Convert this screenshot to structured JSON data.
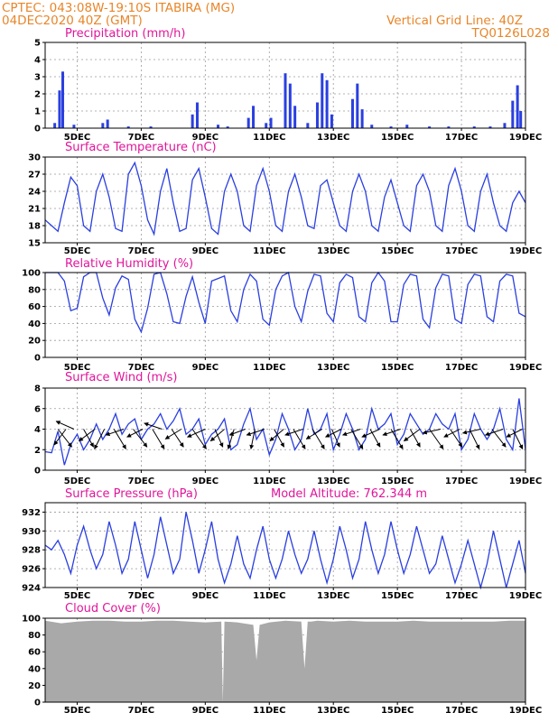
{
  "header": {
    "left_line1": "CPTEC:    043:08W-19:10S    ITABIRA (MG)",
    "left_line2": "04DEC2020 40Z (GMT)",
    "right_line1": "Vertical Grid Line: 40Z",
    "right_line2": "TQ0126L028"
  },
  "colors": {
    "header": "#e8862a",
    "title": "#e0169a",
    "series": "#2a3fe0",
    "cloud": "#a9a9a9",
    "arrow": "#000000"
  },
  "x_ticks": [
    "5DEC",
    "7DEC",
    "9DEC",
    "11DEC",
    "13DEC",
    "15DEC",
    "17DEC",
    "19DEC"
  ],
  "panels": {
    "precip": {
      "title": "Precipitation (mm/h)",
      "y_ticks": [
        "0",
        "1",
        "2",
        "3",
        "4",
        "5"
      ]
    },
    "temp": {
      "title": "Surface Temperature (nC)",
      "y_ticks": [
        "15",
        "18",
        "21",
        "24",
        "27",
        "30"
      ]
    },
    "rh": {
      "title": "Relative Humidity (%)",
      "y_ticks": [
        "0",
        "20",
        "40",
        "60",
        "80",
        "100"
      ]
    },
    "wind": {
      "title": "Surface Wind (m/s)",
      "y_ticks": [
        "0",
        "2",
        "4",
        "6",
        "8"
      ]
    },
    "pres": {
      "title": "Surface Pressure (hPa)",
      "subtitle": "Model Altitude: 762.344 m",
      "y_ticks": [
        "924",
        "926",
        "928",
        "930",
        "932"
      ]
    },
    "cloud": {
      "title": "Cloud Cover (%)",
      "y_ticks": [
        "0",
        "20",
        "40",
        "60",
        "80",
        "100"
      ]
    }
  },
  "chart_data": [
    {
      "type": "bar",
      "ylabel": "Precipitation (mm/h)",
      "ylim": [
        0,
        5
      ],
      "x": [
        "4.3DEC",
        "4.45DEC",
        "4.55DEC",
        "4.9DEC",
        "5.8DEC",
        "5.95DEC",
        "6.6DEC",
        "7.3DEC",
        "8.6DEC",
        "8.75DEC",
        "9.4DEC",
        "9.7DEC",
        "10.35DEC",
        "10.5DEC",
        "10.9DEC",
        "11.05DEC",
        "11.5DEC",
        "11.65DEC",
        "11.8DEC",
        "12.2DEC",
        "12.5DEC",
        "12.65DEC",
        "12.8DEC",
        "12.95DEC",
        "13.6DEC",
        "13.75DEC",
        "13.9DEC",
        "14.2DEC",
        "14.8DEC",
        "15.3DEC",
        "16.0DEC",
        "16.6DEC",
        "17.4DEC",
        "17.9DEC",
        "18.35DEC",
        "18.6DEC",
        "18.75DEC",
        "18.85DEC"
      ],
      "values": [
        0.3,
        2.2,
        3.3,
        0.2,
        0.3,
        0.5,
        0.1,
        0.1,
        0.8,
        1.5,
        0.2,
        0.1,
        0.6,
        1.3,
        0.3,
        0.6,
        3.2,
        2.6,
        1.3,
        0.3,
        1.5,
        3.2,
        2.8,
        0.8,
        1.7,
        2.6,
        1.1,
        0.2,
        0.1,
        0.2,
        0.1,
        0.1,
        0.1,
        0.1,
        0.3,
        1.6,
        2.5,
        1.0
      ],
      "grid": true
    },
    {
      "type": "line",
      "ylabel": "Surface Temperature (nC)",
      "ylim": [
        15,
        30
      ],
      "x": [
        "4.0DEC",
        "4.2DEC",
        "4.4DEC",
        "4.6DEC",
        "4.8DEC",
        "5.0DEC",
        "5.2DEC",
        "5.4DEC",
        "5.6DEC",
        "5.8DEC",
        "6.0DEC",
        "6.2DEC",
        "6.4DEC",
        "6.6DEC",
        "6.8DEC",
        "7.0DEC",
        "7.2DEC",
        "7.4DEC",
        "7.6DEC",
        "7.8DEC",
        "8.0DEC",
        "8.2DEC",
        "8.4DEC",
        "8.6DEC",
        "8.8DEC",
        "9.0DEC",
        "9.2DEC",
        "9.4DEC",
        "9.6DEC",
        "9.8DEC",
        "10.0DEC",
        "10.2DEC",
        "10.4DEC",
        "10.6DEC",
        "10.8DEC",
        "11.0DEC",
        "11.2DEC",
        "11.4DEC",
        "11.6DEC",
        "11.8DEC",
        "12.0DEC",
        "12.2DEC",
        "12.4DEC",
        "12.6DEC",
        "12.8DEC",
        "13.0DEC",
        "13.2DEC",
        "13.4DEC",
        "13.6DEC",
        "13.8DEC",
        "14.0DEC",
        "14.2DEC",
        "14.4DEC",
        "14.6DEC",
        "14.8DEC",
        "15.0DEC",
        "15.2DEC",
        "15.4DEC",
        "15.6DEC",
        "15.8DEC",
        "16.0DEC",
        "16.2DEC",
        "16.4DEC",
        "16.6DEC",
        "16.8DEC",
        "17.0DEC",
        "17.2DEC",
        "17.4DEC",
        "17.6DEC",
        "17.8DEC",
        "18.0DEC",
        "18.2DEC",
        "18.4DEC",
        "18.6DEC",
        "18.8DEC",
        "19.0DEC"
      ],
      "values": [
        19.0,
        18.0,
        17.0,
        22.0,
        26.5,
        25.0,
        18.0,
        17.0,
        24.0,
        27.0,
        23.0,
        17.5,
        17.0,
        27.0,
        29.0,
        25.0,
        19.0,
        16.5,
        24.0,
        28.0,
        22.0,
        17.0,
        17.5,
        26.0,
        28.0,
        23.0,
        17.5,
        16.5,
        24.0,
        27.0,
        24.0,
        18.0,
        17.0,
        25.0,
        28.0,
        24.0,
        18.0,
        17.0,
        24.0,
        27.0,
        23.0,
        18.0,
        17.5,
        25.0,
        26.0,
        22.0,
        18.0,
        17.0,
        24.0,
        27.0,
        24.0,
        18.0,
        17.0,
        23.0,
        26.0,
        22.0,
        18.0,
        17.0,
        25.0,
        27.0,
        24.0,
        18.0,
        17.0,
        25.0,
        28.0,
        24.0,
        18.0,
        17.0,
        24.0,
        27.0,
        22.0,
        18.0,
        17.0,
        22.0,
        24.0,
        22.0
      ],
      "grid": true
    },
    {
      "type": "line",
      "ylabel": "Relative Humidity (%)",
      "ylim": [
        0,
        100
      ],
      "x": [
        "4.0DEC",
        "4.2DEC",
        "4.4DEC",
        "4.6DEC",
        "4.8DEC",
        "5.0DEC",
        "5.2DEC",
        "5.4DEC",
        "5.6DEC",
        "5.8DEC",
        "6.0DEC",
        "6.2DEC",
        "6.4DEC",
        "6.6DEC",
        "6.8DEC",
        "7.0DEC",
        "7.2DEC",
        "7.4DEC",
        "7.6DEC",
        "7.8DEC",
        "8.0DEC",
        "8.2DEC",
        "8.4DEC",
        "8.6DEC",
        "8.8DEC",
        "9.0DEC",
        "9.2DEC",
        "9.4DEC",
        "9.6DEC",
        "9.8DEC",
        "10.0DEC",
        "10.2DEC",
        "10.4DEC",
        "10.6DEC",
        "10.8DEC",
        "11.0DEC",
        "11.2DEC",
        "11.4DEC",
        "11.6DEC",
        "11.8DEC",
        "12.0DEC",
        "12.2DEC",
        "12.4DEC",
        "12.6DEC",
        "12.8DEC",
        "13.0DEC",
        "13.2DEC",
        "13.4DEC",
        "13.6DEC",
        "13.8DEC",
        "14.0DEC",
        "14.2DEC",
        "14.4DEC",
        "14.6DEC",
        "14.8DEC",
        "15.0DEC",
        "15.2DEC",
        "15.4DEC",
        "15.6DEC",
        "15.8DEC",
        "16.0DEC",
        "16.2DEC",
        "16.4DEC",
        "16.6DEC",
        "16.8DEC",
        "17.0DEC",
        "17.2DEC",
        "17.4DEC",
        "17.6DEC",
        "17.8DEC",
        "18.0DEC",
        "18.2DEC",
        "18.4DEC",
        "18.6DEC",
        "18.8DEC",
        "19.0DEC"
      ],
      "values": [
        100,
        100,
        100,
        90,
        55,
        58,
        95,
        100,
        100,
        70,
        50,
        82,
        96,
        92,
        45,
        30,
        58,
        98,
        100,
        75,
        42,
        40,
        72,
        95,
        65,
        40,
        90,
        93,
        96,
        55,
        42,
        80,
        98,
        90,
        45,
        38,
        80,
        96,
        100,
        60,
        42,
        78,
        98,
        96,
        52,
        42,
        88,
        98,
        94,
        48,
        42,
        88,
        100,
        90,
        42,
        42,
        86,
        98,
        96,
        45,
        35,
        82,
        98,
        96,
        45,
        40,
        86,
        98,
        96,
        48,
        42,
        90,
        98,
        96,
        52,
        48
      ],
      "grid": true
    },
    {
      "type": "line",
      "ylabel": "Surface Wind (m/s)",
      "ylim": [
        0,
        8
      ],
      "x": [
        "4.0DEC",
        "4.2DEC",
        "4.4DEC",
        "4.6DEC",
        "4.8DEC",
        "5.0DEC",
        "5.2DEC",
        "5.4DEC",
        "5.6DEC",
        "5.8DEC",
        "6.0DEC",
        "6.2DEC",
        "6.4DEC",
        "6.6DEC",
        "6.8DEC",
        "7.0DEC",
        "7.2DEC",
        "7.4DEC",
        "7.6DEC",
        "7.8DEC",
        "8.0DEC",
        "8.2DEC",
        "8.4DEC",
        "8.6DEC",
        "8.8DEC",
        "9.0DEC",
        "9.2DEC",
        "9.4DEC",
        "9.6DEC",
        "9.8DEC",
        "10.0DEC",
        "10.2DEC",
        "10.4DEC",
        "10.6DEC",
        "10.8DEC",
        "11.0DEC",
        "11.2DEC",
        "11.4DEC",
        "11.6DEC",
        "11.8DEC",
        "12.0DEC",
        "12.2DEC",
        "12.4DEC",
        "12.6DEC",
        "12.8DEC",
        "13.0DEC",
        "13.2DEC",
        "13.4DEC",
        "13.6DEC",
        "13.8DEC",
        "14.0DEC",
        "14.2DEC",
        "14.4DEC",
        "14.6DEC",
        "14.8DEC",
        "15.0DEC",
        "15.2DEC",
        "15.4DEC",
        "15.6DEC",
        "15.8DEC",
        "16.0DEC",
        "16.2DEC",
        "16.4DEC",
        "16.6DEC",
        "16.8DEC",
        "17.0DEC",
        "17.2DEC",
        "17.4DEC",
        "17.6DEC",
        "17.8DEC",
        "18.0DEC",
        "18.2DEC",
        "18.4DEC",
        "18.6DEC",
        "18.8DEC",
        "19.0DEC"
      ],
      "values": [
        1.8,
        1.7,
        3.8,
        0.5,
        2.5,
        3.5,
        2.0,
        3.0,
        4.5,
        3.0,
        4.0,
        5.5,
        3.5,
        4.5,
        5.0,
        3.0,
        4.0,
        4.5,
        5.5,
        4.0,
        4.8,
        6.0,
        3.5,
        4.0,
        5.0,
        2.5,
        3.5,
        4.0,
        5.0,
        2.0,
        2.5,
        4.5,
        6.0,
        3.0,
        4.0,
        1.5,
        3.0,
        5.5,
        4.0,
        2.0,
        3.0,
        6.0,
        3.5,
        4.0,
        5.5,
        2.0,
        3.5,
        5.5,
        4.0,
        2.0,
        3.0,
        6.0,
        4.0,
        4.5,
        5.5,
        2.5,
        3.5,
        5.5,
        4.5,
        3.5,
        4.0,
        5.5,
        4.5,
        4.0,
        5.5,
        2.0,
        3.0,
        5.5,
        4.0,
        3.0,
        4.0,
        6.0,
        3.0,
        2.0,
        7.0,
        2.0
      ],
      "grid": true
    },
    {
      "type": "line",
      "ylabel": "Surface Pressure (hPa)",
      "ylim": [
        924,
        933
      ],
      "x": [
        "4.0DEC",
        "4.2DEC",
        "4.4DEC",
        "4.6DEC",
        "4.8DEC",
        "5.0DEC",
        "5.2DEC",
        "5.4DEC",
        "5.6DEC",
        "5.8DEC",
        "6.0DEC",
        "6.2DEC",
        "6.4DEC",
        "6.6DEC",
        "6.8DEC",
        "7.0DEC",
        "7.2DEC",
        "7.4DEC",
        "7.6DEC",
        "7.8DEC",
        "8.0DEC",
        "8.2DEC",
        "8.4DEC",
        "8.6DEC",
        "8.8DEC",
        "9.0DEC",
        "9.2DEC",
        "9.4DEC",
        "9.6DEC",
        "9.8DEC",
        "10.0DEC",
        "10.2DEC",
        "10.4DEC",
        "10.6DEC",
        "10.8DEC",
        "11.0DEC",
        "11.2DEC",
        "11.4DEC",
        "11.6DEC",
        "11.8DEC",
        "12.0DEC",
        "12.2DEC",
        "12.4DEC",
        "12.6DEC",
        "12.8DEC",
        "13.0DEC",
        "13.2DEC",
        "13.4DEC",
        "13.6DEC",
        "13.8DEC",
        "14.0DEC",
        "14.2DEC",
        "14.4DEC",
        "14.6DEC",
        "14.8DEC",
        "15.0DEC",
        "15.2DEC",
        "15.4DEC",
        "15.6DEC",
        "15.8DEC",
        "16.0DEC",
        "16.2DEC",
        "16.4DEC",
        "16.6DEC",
        "16.8DEC",
        "17.0DEC",
        "17.2DEC",
        "17.4DEC",
        "17.6DEC",
        "17.8DEC",
        "18.0DEC",
        "18.2DEC",
        "18.4DEC",
        "18.6DEC",
        "18.8DEC",
        "19.0DEC"
      ],
      "values": [
        928.5,
        928.0,
        929.0,
        927.5,
        925.5,
        928.5,
        930.5,
        928.0,
        926.0,
        927.5,
        931.0,
        928.5,
        925.5,
        927.0,
        931.0,
        928.0,
        925.0,
        927.5,
        931.5,
        928.5,
        925.5,
        927.0,
        932.0,
        929.0,
        925.5,
        928.0,
        931.0,
        927.0,
        924.5,
        926.5,
        929.5,
        926.5,
        925.0,
        928.0,
        930.5,
        927.0,
        925.0,
        927.0,
        930.0,
        927.5,
        925.5,
        927.0,
        930.0,
        927.0,
        924.5,
        927.0,
        930.5,
        928.0,
        925.0,
        927.0,
        931.0,
        928.0,
        925.5,
        927.5,
        931.0,
        928.0,
        925.5,
        927.5,
        930.5,
        928.0,
        925.5,
        926.5,
        929.5,
        927.0,
        924.5,
        926.5,
        929.0,
        926.5,
        924.0,
        926.5,
        930.0,
        927.0,
        924.0,
        926.5,
        929.0,
        925.5
      ],
      "grid": true
    },
    {
      "type": "area",
      "ylabel": "Cloud Cover (%)",
      "ylim": [
        0,
        100
      ],
      "x": [
        "4.0DEC",
        "4.5DEC",
        "5.0DEC",
        "5.5DEC",
        "6.0DEC",
        "6.5DEC",
        "7.0DEC",
        "7.5DEC",
        "8.0DEC",
        "8.5DEC",
        "9.0DEC",
        "9.5DEC",
        "9.55DEC",
        "9.6DEC",
        "10.0DEC",
        "10.5DEC",
        "10.6DEC",
        "10.7DEC",
        "11.0DEC",
        "11.5DEC",
        "12.0DEC",
        "12.1DEC",
        "12.2DEC",
        "12.3DEC",
        "12.5DEC",
        "13.0DEC",
        "13.5DEC",
        "14.0DEC",
        "14.5DEC",
        "15.0DEC",
        "15.5DEC",
        "16.0DEC",
        "16.5DEC",
        "17.0DEC",
        "17.5DEC",
        "18.0DEC",
        "18.5DEC",
        "19.0DEC"
      ],
      "values": [
        97,
        94,
        96,
        97,
        97,
        96,
        96,
        97,
        97,
        96,
        95,
        96,
        0,
        96,
        95,
        92,
        50,
        92,
        95,
        97,
        96,
        40,
        96,
        96,
        97,
        96,
        97,
        96,
        96,
        96,
        97,
        96,
        96,
        96,
        96,
        96,
        97,
        97
      ],
      "grid": true
    }
  ],
  "wind_arrows": [
    {
      "x": 4.4,
      "u": 0.7,
      "v": 0.9
    },
    {
      "x": 4.65,
      "u": -0.6,
      "v": 0.8
    },
    {
      "x": 4.9,
      "u": -0.9,
      "v": -0.4
    },
    {
      "x": 5.2,
      "u": 0.5,
      "v": 0.9
    },
    {
      "x": 5.55,
      "u": -0.8,
      "v": 0.6
    },
    {
      "x": 5.85,
      "u": -0.5,
      "v": 1.0
    },
    {
      "x": 6.15,
      "u": 0.6,
      "v": 1.0
    },
    {
      "x": 6.45,
      "u": -0.9,
      "v": 0.3
    },
    {
      "x": 6.75,
      "u": 0.7,
      "v": 0.9
    },
    {
      "x": 7.05,
      "u": -0.8,
      "v": 0.4
    },
    {
      "x": 7.35,
      "u": 0.6,
      "v": 1.0
    },
    {
      "x": 7.65,
      "u": -0.9,
      "v": -0.3
    },
    {
      "x": 7.95,
      "u": 0.6,
      "v": 0.9
    },
    {
      "x": 8.25,
      "u": -0.8,
      "v": 0.5
    },
    {
      "x": 8.6,
      "u": 0.7,
      "v": 1.0
    },
    {
      "x": 9.0,
      "u": -0.9,
      "v": 0.4
    },
    {
      "x": 9.3,
      "u": 0.4,
      "v": 0.9
    },
    {
      "x": 9.6,
      "u": -0.7,
      "v": 0.6
    },
    {
      "x": 9.9,
      "u": -0.3,
      "v": 1.0
    },
    {
      "x": 10.25,
      "u": -0.8,
      "v": 0.3
    },
    {
      "x": 10.55,
      "u": -0.2,
      "v": 1.0
    },
    {
      "x": 10.85,
      "u": -0.9,
      "v": 0.3
    },
    {
      "x": 11.15,
      "u": 0.5,
      "v": 0.9
    },
    {
      "x": 11.45,
      "u": -0.7,
      "v": 0.6
    },
    {
      "x": 11.75,
      "u": 0.6,
      "v": 1.0
    },
    {
      "x": 12.05,
      "u": -0.9,
      "v": 0.3
    },
    {
      "x": 12.35,
      "u": 0.6,
      "v": 1.0
    },
    {
      "x": 12.65,
      "u": -0.8,
      "v": 0.5
    },
    {
      "x": 12.95,
      "u": 0.4,
      "v": 0.9
    },
    {
      "x": 13.25,
      "u": -0.8,
      "v": 0.4
    },
    {
      "x": 13.55,
      "u": 0.6,
      "v": 1.0
    },
    {
      "x": 13.85,
      "u": -0.9,
      "v": 0.3
    },
    {
      "x": 14.15,
      "u": 0.5,
      "v": 0.9
    },
    {
      "x": 14.45,
      "u": -0.9,
      "v": 0.4
    },
    {
      "x": 14.8,
      "u": 0.6,
      "v": 1.0
    },
    {
      "x": 15.1,
      "u": -0.9,
      "v": 0.3
    },
    {
      "x": 15.4,
      "u": 0.5,
      "v": 0.9
    },
    {
      "x": 15.7,
      "u": -0.8,
      "v": 0.6
    },
    {
      "x": 16.0,
      "u": 0.7,
      "v": 1.0
    },
    {
      "x": 16.35,
      "u": -0.9,
      "v": 0.2
    },
    {
      "x": 16.65,
      "u": 0.6,
      "v": 0.9
    },
    {
      "x": 16.95,
      "u": -0.8,
      "v": 0.4
    },
    {
      "x": 17.25,
      "u": 0.5,
      "v": 1.0
    },
    {
      "x": 17.6,
      "u": -0.9,
      "v": 0.2
    },
    {
      "x": 17.95,
      "u": 0.7,
      "v": 0.9
    },
    {
      "x": 18.3,
      "u": -0.9,
      "v": 0.3
    },
    {
      "x": 18.6,
      "u": 0.5,
      "v": 1.0
    },
    {
      "x": 18.9,
      "u": -0.8,
      "v": 0.4
    }
  ]
}
